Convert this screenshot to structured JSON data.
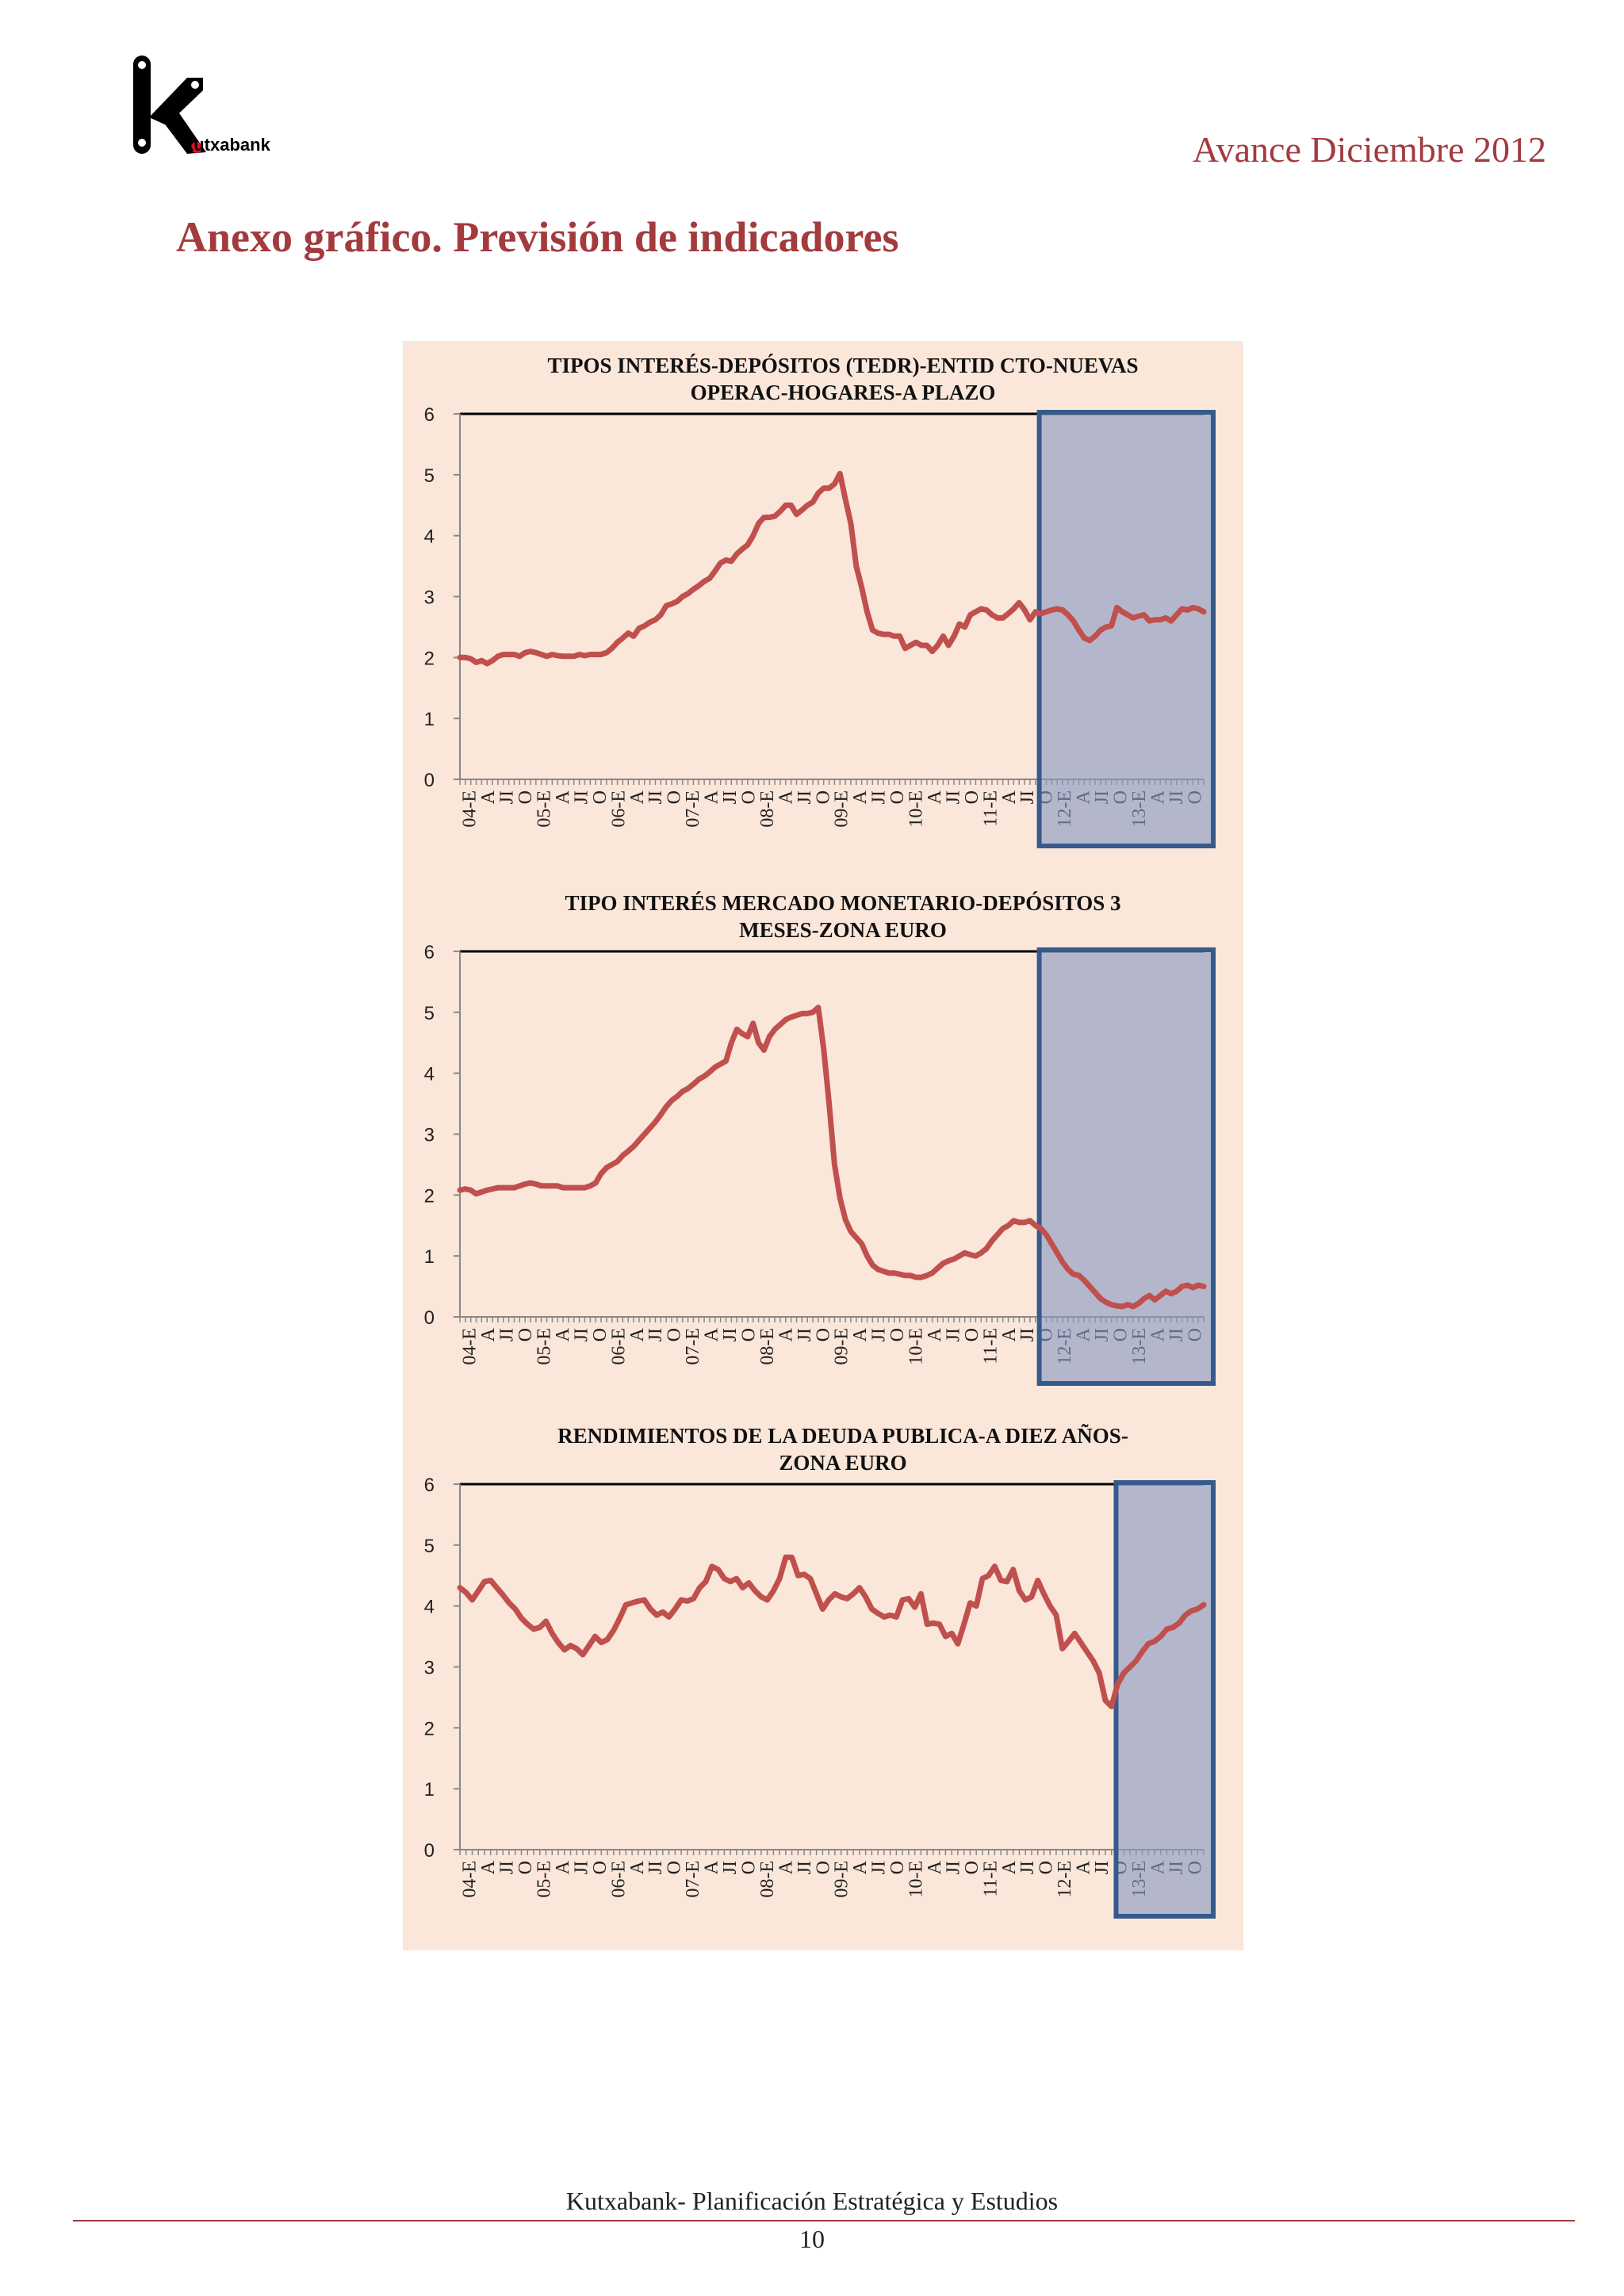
{
  "header": {
    "brand": "kutxabank",
    "report": "Avance Diciembre 2012",
    "section_title": "Anexo gráfico. Previsión de indicadores"
  },
  "footer": {
    "text": "Kutxabank- Planificación Estratégica y Estudios",
    "page": "10"
  },
  "colors": {
    "accent": "#a33a3e",
    "line": "#c0504d",
    "panel_bg": "#fbe6da",
    "forecast_fill": "#8899c2",
    "forecast_border": "#375a8c"
  },
  "chart_data": [
    {
      "type": "line",
      "title_lines": [
        "TIPOS INTERÉS-DEPÓSITOS (TEDR)-ENTID CTO-NUEVAS",
        "OPERAC-HOGARES-A PLAZO"
      ],
      "ylim": [
        0,
        6
      ],
      "yticks": [
        "0",
        "1",
        "2",
        "3",
        "4",
        "5",
        "6"
      ],
      "xticks": [
        "04-E",
        "A",
        "JI",
        "O",
        "05-E",
        "A",
        "JI",
        "O",
        "06-E",
        "A",
        "JI",
        "O",
        "07-E",
        "A",
        "JI",
        "O",
        "08-E",
        "A",
        "JI",
        "O",
        "09-E",
        "A",
        "JI",
        "O",
        "10-E",
        "A",
        "JI",
        "O",
        "11-E",
        "A",
        "JI",
        "O",
        "12-E",
        "A",
        "JI",
        "O",
        "13-E",
        "A",
        "JI",
        "O"
      ],
      "forecast_start": 107,
      "grid": false,
      "series": [
        {
          "values": [
            2.0,
            2.0,
            1.98,
            1.92,
            1.95,
            1.9,
            1.95,
            2.02,
            2.05,
            2.05,
            2.05,
            2.02,
            2.08,
            2.1,
            2.08,
            2.05,
            2.02,
            2.05,
            2.03,
            2.02,
            2.02,
            2.02,
            2.05,
            2.03,
            2.05,
            2.05,
            2.05,
            2.08,
            2.15,
            2.25,
            2.32,
            2.4,
            2.35,
            2.48,
            2.52,
            2.58,
            2.62,
            2.7,
            2.85,
            2.88,
            2.92,
            3.0,
            3.05,
            3.12,
            3.18,
            3.25,
            3.3,
            3.42,
            3.55,
            3.6,
            3.58,
            3.7,
            3.78,
            3.85,
            4.0,
            4.2,
            4.3,
            4.3,
            4.32,
            4.4,
            4.5,
            4.5,
            4.35,
            4.42,
            4.5,
            4.55,
            4.7,
            4.78,
            4.78,
            4.85,
            5.02,
            4.6,
            4.2,
            3.5,
            3.15,
            2.75,
            2.45,
            2.4,
            2.38,
            2.38,
            2.35,
            2.35,
            2.15,
            2.2,
            2.25,
            2.2,
            2.2,
            2.1,
            2.2,
            2.35,
            2.2,
            2.35,
            2.55,
            2.5,
            2.7,
            2.75,
            2.8,
            2.78,
            2.7,
            2.65,
            2.65,
            2.72,
            2.8,
            2.9,
            2.78,
            2.62,
            2.75,
            2.72,
            2.75,
            2.78,
            2.8,
            2.78,
            2.7,
            2.6,
            2.45,
            2.32,
            2.28,
            2.35,
            2.45,
            2.5,
            2.52,
            2.82,
            2.75,
            2.7,
            2.65,
            2.68,
            2.7,
            2.6,
            2.62,
            2.62,
            2.65,
            2.6,
            2.7,
            2.8,
            2.78,
            2.82,
            2.8,
            2.75
          ]
        }
      ]
    },
    {
      "type": "line",
      "title_lines": [
        "TIPO INTERÉS MERCADO MONETARIO-DEPÓSITOS 3",
        "MESES-ZONA EURO"
      ],
      "ylim": [
        0,
        6
      ],
      "yticks": [
        "0",
        "1",
        "2",
        "3",
        "4",
        "5",
        "6"
      ],
      "xticks": [
        "04-E",
        "A",
        "JI",
        "O",
        "05-E",
        "A",
        "JI",
        "O",
        "06-E",
        "A",
        "JI",
        "O",
        "07-E",
        "A",
        "JI",
        "O",
        "08-E",
        "A",
        "JI",
        "O",
        "09-E",
        "A",
        "JI",
        "O",
        "10-E",
        "A",
        "JI",
        "O",
        "11-E",
        "A",
        "JI",
        "O",
        "12-E",
        "A",
        "JI",
        "O",
        "13-E",
        "A",
        "JI",
        "O"
      ],
      "forecast_start": 107,
      "grid": false,
      "series": [
        {
          "values": [
            2.08,
            2.1,
            2.08,
            2.02,
            2.05,
            2.08,
            2.1,
            2.12,
            2.12,
            2.12,
            2.12,
            2.15,
            2.18,
            2.2,
            2.18,
            2.15,
            2.15,
            2.15,
            2.15,
            2.12,
            2.12,
            2.12,
            2.12,
            2.12,
            2.15,
            2.2,
            2.35,
            2.45,
            2.5,
            2.55,
            2.65,
            2.72,
            2.8,
            2.9,
            3.0,
            3.1,
            3.2,
            3.32,
            3.45,
            3.55,
            3.62,
            3.7,
            3.75,
            3.82,
            3.9,
            3.95,
            4.02,
            4.1,
            4.15,
            4.2,
            4.5,
            4.72,
            4.65,
            4.6,
            4.82,
            4.5,
            4.38,
            4.6,
            4.72,
            4.8,
            4.88,
            4.92,
            4.95,
            4.98,
            4.98,
            5.0,
            5.08,
            4.4,
            3.5,
            2.5,
            1.95,
            1.6,
            1.4,
            1.3,
            1.2,
            1.0,
            0.85,
            0.78,
            0.75,
            0.72,
            0.72,
            0.7,
            0.68,
            0.68,
            0.65,
            0.65,
            0.68,
            0.72,
            0.8,
            0.88,
            0.92,
            0.95,
            1.0,
            1.05,
            1.02,
            1.0,
            1.05,
            1.12,
            1.25,
            1.35,
            1.45,
            1.5,
            1.58,
            1.55,
            1.55,
            1.58,
            1.5,
            1.45,
            1.35,
            1.2,
            1.05,
            0.9,
            0.78,
            0.7,
            0.68,
            0.6,
            0.5,
            0.4,
            0.3,
            0.24,
            0.2,
            0.18,
            0.17,
            0.2,
            0.17,
            0.22,
            0.3,
            0.35,
            0.28,
            0.35,
            0.42,
            0.38,
            0.42,
            0.5,
            0.52,
            0.48,
            0.52,
            0.5
          ]
        }
      ]
    },
    {
      "type": "line",
      "title_lines": [
        "RENDIMIENTOS DE LA DEUDA PUBLICA-A DIEZ AÑOS-",
        "ZONA EURO"
      ],
      "ylim": [
        0,
        6
      ],
      "yticks": [
        "0",
        "1",
        "2",
        "3",
        "4",
        "5",
        "6"
      ],
      "xticks": [
        "04-E",
        "A",
        "JI",
        "O",
        "05-E",
        "A",
        "JI",
        "O",
        "06-E",
        "A",
        "JI",
        "O",
        "07-E",
        "A",
        "JI",
        "O",
        "08-E",
        "A",
        "JI",
        "O",
        "09-E",
        "A",
        "JI",
        "O",
        "10-E",
        "A",
        "JI",
        "O",
        "11-E",
        "A",
        "JI",
        "O",
        "12-E",
        "A",
        "JI",
        "O",
        "13-E",
        "A",
        "JI",
        "O"
      ],
      "forecast_start": 107,
      "grid": false,
      "series": [
        {
          "values": [
            4.3,
            4.22,
            4.1,
            4.25,
            4.4,
            4.42,
            4.3,
            4.18,
            4.05,
            3.95,
            3.8,
            3.7,
            3.62,
            3.65,
            3.75,
            3.55,
            3.4,
            3.28,
            3.35,
            3.3,
            3.2,
            3.35,
            3.5,
            3.4,
            3.45,
            3.6,
            3.8,
            4.02,
            4.05,
            4.08,
            4.1,
            3.95,
            3.85,
            3.9,
            3.82,
            3.95,
            4.1,
            4.08,
            4.12,
            4.3,
            4.4,
            4.65,
            4.6,
            4.45,
            4.4,
            4.45,
            4.3,
            4.38,
            4.25,
            4.15,
            4.1,
            4.25,
            4.45,
            4.8,
            4.8,
            4.5,
            4.52,
            4.45,
            4.2,
            3.95,
            4.1,
            4.2,
            4.15,
            4.12,
            4.2,
            4.3,
            4.15,
            3.95,
            3.88,
            3.82,
            3.85,
            3.82,
            4.1,
            4.12,
            3.98,
            4.2,
            3.7,
            3.72,
            3.7,
            3.5,
            3.55,
            3.38,
            3.7,
            4.05,
            4.0,
            4.45,
            4.5,
            4.65,
            4.42,
            4.4,
            4.6,
            4.25,
            4.1,
            4.15,
            4.42,
            4.2,
            4.0,
            3.85,
            3.3,
            3.42,
            3.55,
            3.4,
            3.25,
            3.1,
            2.9,
            2.45,
            2.35,
            2.72,
            2.9,
            3.0,
            3.1,
            3.25,
            3.38,
            3.42,
            3.5,
            3.62,
            3.65,
            3.72,
            3.85,
            3.92,
            3.95,
            4.02
          ]
        }
      ]
    }
  ]
}
